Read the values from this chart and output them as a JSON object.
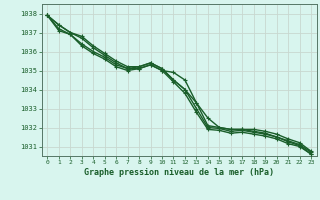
{
  "bg_color": "#d8f5ee",
  "plot_bg_color": "#d8f5ee",
  "grid_color": "#c8d8d0",
  "line_color": "#1a5e2a",
  "marker_color": "#1a5e2a",
  "xlabel": "Graphe pression niveau de la mer (hPa)",
  "xlabel_color": "#1a5e2a",
  "tick_color": "#1a5e2a",
  "spine_color": "#557766",
  "xlim": [
    -0.5,
    23.5
  ],
  "ylim": [
    1030.5,
    1038.5
  ],
  "yticks": [
    1031,
    1032,
    1033,
    1034,
    1035,
    1036,
    1037,
    1038
  ],
  "xticks": [
    0,
    1,
    2,
    3,
    4,
    5,
    6,
    7,
    8,
    9,
    10,
    11,
    12,
    13,
    14,
    15,
    16,
    17,
    18,
    19,
    20,
    21,
    22,
    23
  ],
  "series": [
    [
      1037.9,
      1037.4,
      1037.0,
      1036.7,
      1036.2,
      1035.8,
      1035.4,
      1035.1,
      1035.1,
      1035.3,
      1035.0,
      1034.9,
      1034.5,
      1033.3,
      1032.1,
      1032.0,
      1031.9,
      1031.9,
      1031.8,
      1031.7,
      1031.5,
      1031.3,
      1031.1,
      1030.7
    ],
    [
      1037.9,
      1037.4,
      1037.0,
      1036.8,
      1036.3,
      1035.9,
      1035.5,
      1035.2,
      1035.2,
      1035.4,
      1035.1,
      1034.5,
      1034.0,
      1033.3,
      1032.5,
      1032.0,
      1031.9,
      1031.9,
      1031.9,
      1031.8,
      1031.65,
      1031.4,
      1031.2,
      1030.75
    ],
    [
      1037.9,
      1037.1,
      1036.9,
      1036.4,
      1036.0,
      1035.7,
      1035.3,
      1035.1,
      1035.2,
      1035.4,
      1035.1,
      1034.5,
      1034.0,
      1033.0,
      1032.0,
      1031.95,
      1031.8,
      1031.85,
      1031.75,
      1031.65,
      1031.5,
      1031.25,
      1031.05,
      1030.6
    ],
    [
      1037.9,
      1037.2,
      1036.9,
      1036.3,
      1035.9,
      1035.6,
      1035.2,
      1035.0,
      1035.1,
      1035.3,
      1035.0,
      1034.4,
      1033.8,
      1032.8,
      1031.9,
      1031.85,
      1031.7,
      1031.75,
      1031.65,
      1031.55,
      1031.4,
      1031.15,
      1031.0,
      1030.6
    ]
  ]
}
